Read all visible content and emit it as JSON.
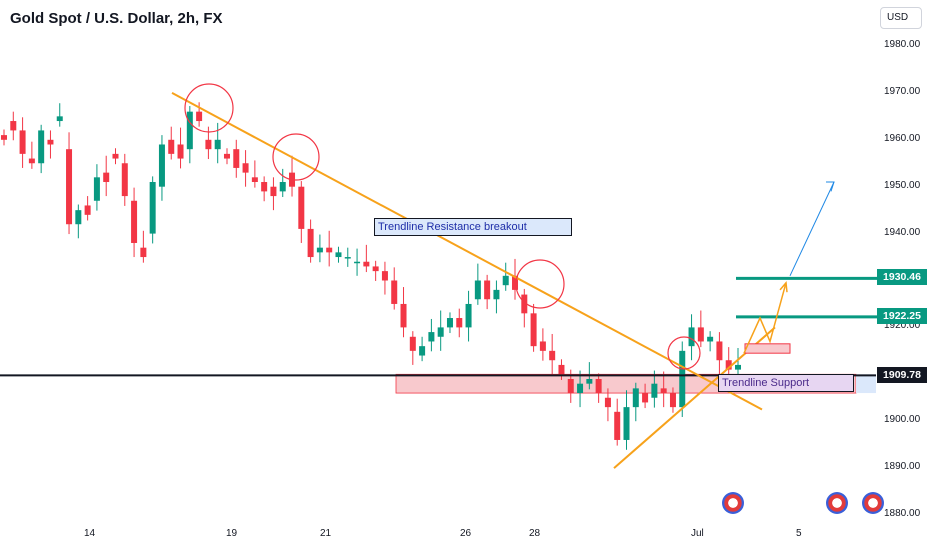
{
  "header": {
    "title": "Gold Spot / U.S. Dollar, 2h, FX",
    "currency": "USD"
  },
  "price_tags": [
    {
      "label": "1930.46",
      "value": 1930.46,
      "color": "#089981"
    },
    {
      "label": "1922.25",
      "value": 1922.25,
      "color": "#089981"
    },
    {
      "label": "1909.78",
      "value": 1909.78,
      "color": "#131722"
    }
  ],
  "annotations": {
    "breakout_label": "Trendline Resistance breakout",
    "support_label": "Trendline Support"
  },
  "colors": {
    "up": "#089981",
    "down": "#f23645",
    "trendline": "#f7a21b",
    "zone": "#f8c9cd",
    "target": "#1e88e5"
  },
  "chart_data": {
    "type": "candlestick",
    "title": "Gold Spot / U.S. Dollar, 2h, FX",
    "ylim": [
      1880,
      1985
    ],
    "y_ticks": [
      1880,
      1890,
      1900,
      1910,
      1920,
      1930,
      1940,
      1950,
      1960,
      1970,
      1980
    ],
    "x_ticks": [
      "14",
      "19",
      "21",
      "26",
      "28",
      "Jul",
      "5"
    ],
    "path": [
      [
        1961,
        1960
      ],
      [
        1964,
        1962
      ],
      [
        1962,
        1957
      ],
      [
        1956,
        1955
      ],
      [
        1955,
        1962
      ],
      [
        1960,
        1959
      ],
      [
        1964,
        1965
      ],
      [
        1958,
        1942
      ],
      [
        1942,
        1945
      ],
      [
        1946,
        1944
      ],
      [
        1947,
        1952
      ],
      [
        1953,
        1951
      ],
      [
        1957,
        1956
      ],
      [
        1955,
        1948
      ],
      [
        1947,
        1938
      ],
      [
        1937,
        1935
      ],
      [
        1940,
        1951
      ],
      [
        1950,
        1959
      ],
      [
        1960,
        1957
      ],
      [
        1959,
        1956
      ],
      [
        1958,
        1966
      ],
      [
        1966,
        1964
      ],
      [
        1960,
        1958
      ],
      [
        1958,
        1960
      ],
      [
        1957,
        1956
      ],
      [
        1958,
        1954
      ],
      [
        1955,
        1953
      ],
      [
        1952,
        1951
      ],
      [
        1951,
        1949
      ],
      [
        1950,
        1948
      ],
      [
        1949,
        1951
      ],
      [
        1953,
        1950
      ],
      [
        1950,
        1941
      ],
      [
        1941,
        1935
      ],
      [
        1936,
        1937
      ],
      [
        1937,
        1936
      ],
      [
        1935,
        1936
      ],
      [
        1935,
        1935
      ],
      [
        1934,
        1934
      ],
      [
        1934,
        1933
      ],
      [
        1933,
        1932
      ],
      [
        1932,
        1930
      ],
      [
        1930,
        1925
      ],
      [
        1925,
        1920
      ],
      [
        1918,
        1915
      ],
      [
        1914,
        1916
      ],
      [
        1917,
        1919
      ],
      [
        1918,
        1920
      ],
      [
        1920,
        1922
      ],
      [
        1922,
        1920
      ],
      [
        1920,
        1925
      ],
      [
        1926,
        1930
      ],
      [
        1930,
        1926
      ],
      [
        1926,
        1928
      ],
      [
        1929,
        1931
      ],
      [
        1931,
        1928
      ],
      [
        1927,
        1923
      ],
      [
        1923,
        1916
      ],
      [
        1917,
        1915
      ],
      [
        1915,
        1913
      ],
      [
        1912,
        1910
      ],
      [
        1909,
        1906
      ],
      [
        1906,
        1908
      ],
      [
        1908,
        1909
      ],
      [
        1909,
        1906
      ],
      [
        1905,
        1903
      ],
      [
        1902,
        1896
      ],
      [
        1896,
        1903
      ],
      [
        1903,
        1907
      ],
      [
        1906,
        1904
      ],
      [
        1905,
        1908
      ],
      [
        1907,
        1906
      ],
      [
        1906,
        1903
      ],
      [
        1903,
        1915
      ],
      [
        1916,
        1920
      ],
      [
        1920,
        1917
      ],
      [
        1917,
        1918
      ],
      [
        1917,
        1913
      ],
      [
        1913,
        1911
      ],
      [
        1911,
        1912
      ]
    ],
    "overlays": {
      "resistance_line": [
        [
          1970,
          1903
        ],
        [
          "x",
          "x"
        ]
      ],
      "support_line": [
        1890,
        1919
      ],
      "horizontal_level": 1909.78,
      "targets": [
        1930.46,
        1922.25
      ]
    }
  }
}
